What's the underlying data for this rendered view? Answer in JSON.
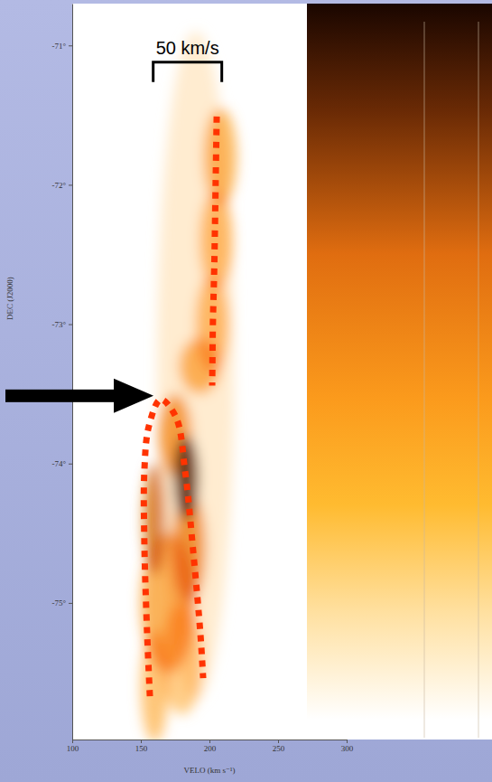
{
  "chart_data": {
    "type": "position-velocity",
    "x_label": "VELO (km s⁻¹)",
    "y_label": "DEC (J2000)",
    "xlim": [
      100,
      300
    ],
    "xticks": [
      100,
      150,
      200,
      250,
      300
    ],
    "ylim": [
      -75.98,
      -70.7
    ],
    "yticks": [
      {
        "value": -71,
        "label": "-71°"
      },
      {
        "value": -72,
        "label": "-72°"
      },
      {
        "value": -73,
        "label": "-73°"
      },
      {
        "value": -74,
        "label": "-74°"
      },
      {
        "value": -75,
        "label": "-75°"
      }
    ],
    "series": [
      {
        "color": "#ff3300",
        "line_style": "dotted",
        "x": [
          205.3,
          204.5,
          203.5,
          202.5,
          202.0
        ],
        "values": [
          -71.51,
          -72.0,
          -72.6,
          -73.0,
          -73.44
        ]
      },
      {
        "color": "#ff3300",
        "line_style": "dotted",
        "x": [
          156.6,
          154.6,
          152.6,
          152.6,
          155.9,
          164.5,
          175.7,
          182.2,
          188.8,
          193.4,
          195.4
        ],
        "values": [
          -75.67,
          -75.22,
          -74.57,
          -74.05,
          -73.73,
          -73.54,
          -73.67,
          -74.05,
          -74.7,
          -75.22,
          -75.54
        ]
      }
    ],
    "emission": {
      "velocity": [
        190,
        208,
        205,
        202,
        193,
        175,
        160,
        183,
        185,
        170,
        160,
        180
      ],
      "dec": [
        -73.3,
        -71.8,
        -72.4,
        -73.0,
        -73.3,
        -73.8,
        -74.4,
        -74.1,
        -74.6,
        -75.0,
        -75.6,
        -75.4
      ],
      "velocity_width": [
        28,
        12,
        12,
        12,
        15,
        12,
        8,
        9,
        12,
        20,
        10,
        15
      ],
      "dec_width": [
        2.4,
        0.35,
        0.35,
        0.35,
        0.2,
        0.3,
        0.4,
        0.3,
        0.4,
        0.5,
        0.4,
        0.4
      ],
      "intensity": [
        0.12,
        0.45,
        0.4,
        0.4,
        0.45,
        0.55,
        0.7,
        0.95,
        0.6,
        0.5,
        0.4,
        0.35
      ]
    },
    "annotations": [
      {
        "text": "50 km/s",
        "x": [
          159,
          209
        ],
        "y": -71.12
      }
    ]
  }
}
